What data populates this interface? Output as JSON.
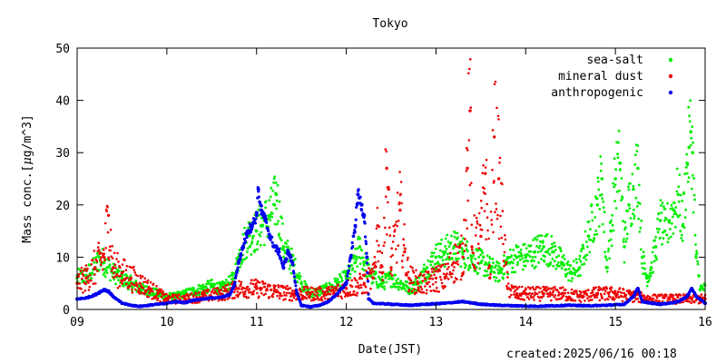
{
  "chart_data": {
    "type": "scatter",
    "title": "Tokyo",
    "xlabel": "Date(JST)",
    "ylabel_parts": [
      "Mass conc.[",
      "μ",
      "g/m",
      "^3",
      "]"
    ],
    "xlim": [
      9,
      16
    ],
    "ylim": [
      0,
      50
    ],
    "x_ticks": [
      "09",
      "10",
      "11",
      "12",
      "13",
      "14",
      "15",
      "16"
    ],
    "y_ticks": [
      0,
      10,
      20,
      30,
      40,
      50
    ],
    "grid": false,
    "legend_position": "top-right",
    "series": [
      {
        "name": "sea-salt",
        "color": "#00ee00",
        "points": [
          [
            9.0,
            6
          ],
          [
            9.1,
            6.5
          ],
          [
            9.2,
            8
          ],
          [
            9.25,
            10
          ],
          [
            9.3,
            9
          ],
          [
            9.4,
            7
          ],
          [
            9.5,
            6
          ],
          [
            9.6,
            5
          ],
          [
            9.7,
            4
          ],
          [
            9.8,
            3.5
          ],
          [
            9.9,
            3
          ],
          [
            10.0,
            2.5
          ],
          [
            10.1,
            2.5
          ],
          [
            10.2,
            3
          ],
          [
            10.3,
            3.5
          ],
          [
            10.4,
            4
          ],
          [
            10.5,
            4.5
          ],
          [
            10.6,
            4
          ],
          [
            10.7,
            5
          ],
          [
            10.75,
            6
          ],
          [
            10.8,
            10
          ],
          [
            10.85,
            12
          ],
          [
            10.9,
            14
          ],
          [
            11.0,
            15
          ],
          [
            11.05,
            16
          ],
          [
            11.1,
            17
          ],
          [
            11.15,
            18
          ],
          [
            11.2,
            20
          ],
          [
            11.22,
            22
          ],
          [
            11.3,
            12
          ],
          [
            11.4,
            9
          ],
          [
            11.5,
            5
          ],
          [
            11.6,
            3
          ],
          [
            11.7,
            3.5
          ],
          [
            11.8,
            4
          ],
          [
            11.9,
            5
          ],
          [
            12.0,
            6
          ],
          [
            12.1,
            9
          ],
          [
            12.15,
            12
          ],
          [
            12.2,
            9
          ],
          [
            12.3,
            6
          ],
          [
            12.4,
            5
          ],
          [
            12.5,
            6
          ],
          [
            12.6,
            5
          ],
          [
            12.7,
            4
          ],
          [
            12.8,
            5
          ],
          [
            12.9,
            8
          ],
          [
            13.0,
            10
          ],
          [
            13.1,
            11
          ],
          [
            13.2,
            12
          ],
          [
            13.3,
            11
          ],
          [
            13.4,
            10
          ],
          [
            13.5,
            9
          ],
          [
            13.6,
            8
          ],
          [
            13.7,
            7
          ],
          [
            13.8,
            9
          ],
          [
            13.9,
            10
          ],
          [
            14.0,
            10
          ],
          [
            14.1,
            11
          ],
          [
            14.2,
            12
          ],
          [
            14.3,
            11
          ],
          [
            14.4,
            9
          ],
          [
            14.5,
            7
          ],
          [
            14.6,
            8
          ],
          [
            14.7,
            14
          ],
          [
            14.8,
            20
          ],
          [
            14.85,
            25
          ],
          [
            14.9,
            8
          ],
          [
            14.95,
            15
          ],
          [
            15.0,
            25
          ],
          [
            15.05,
            28
          ],
          [
            15.1,
            12
          ],
          [
            15.15,
            20
          ],
          [
            15.2,
            23
          ],
          [
            15.25,
            27
          ],
          [
            15.3,
            10
          ],
          [
            15.35,
            6
          ],
          [
            15.4,
            8
          ],
          [
            15.45,
            12
          ],
          [
            15.5,
            17
          ],
          [
            15.55,
            15
          ],
          [
            15.6,
            17
          ],
          [
            15.65,
            19
          ],
          [
            15.7,
            22
          ],
          [
            15.75,
            16
          ],
          [
            15.8,
            28
          ],
          [
            15.82,
            31
          ],
          [
            15.84,
            34
          ],
          [
            15.86,
            30
          ],
          [
            15.9,
            10
          ],
          [
            15.95,
            4
          ]
        ]
      },
      {
        "name": "mineral dust",
        "color": "#ee0000",
        "points": [
          [
            9.0,
            5
          ],
          [
            9.1,
            6
          ],
          [
            9.2,
            8
          ],
          [
            9.3,
            10
          ],
          [
            9.35,
            18
          ],
          [
            9.4,
            8
          ],
          [
            9.5,
            7
          ],
          [
            9.6,
            6
          ],
          [
            9.7,
            5
          ],
          [
            9.8,
            4
          ],
          [
            9.9,
            3
          ],
          [
            10.0,
            2
          ],
          [
            10.2,
            2
          ],
          [
            10.4,
            2.5
          ],
          [
            10.6,
            3
          ],
          [
            10.8,
            4
          ],
          [
            11.0,
            4
          ],
          [
            11.2,
            3.5
          ],
          [
            11.4,
            3
          ],
          [
            11.6,
            3
          ],
          [
            11.8,
            3
          ],
          [
            12.0,
            4
          ],
          [
            12.2,
            5
          ],
          [
            12.3,
            6
          ],
          [
            12.35,
            16
          ],
          [
            12.4,
            7
          ],
          [
            12.45,
            27
          ],
          [
            12.5,
            8
          ],
          [
            12.6,
            19
          ],
          [
            12.65,
            11
          ],
          [
            12.7,
            6
          ],
          [
            12.8,
            5
          ],
          [
            12.9,
            5
          ],
          [
            13.0,
            6
          ],
          [
            13.1,
            6
          ],
          [
            13.2,
            9
          ],
          [
            13.3,
            10
          ],
          [
            13.35,
            27
          ],
          [
            13.38,
            38
          ],
          [
            13.4,
            12
          ],
          [
            13.5,
            14
          ],
          [
            13.55,
            26
          ],
          [
            13.6,
            6
          ],
          [
            13.65,
            33
          ],
          [
            13.7,
            25
          ],
          [
            13.8,
            4
          ],
          [
            13.9,
            3
          ],
          [
            14.0,
            3
          ],
          [
            14.2,
            3
          ],
          [
            14.4,
            3
          ],
          [
            14.6,
            2.5
          ],
          [
            14.8,
            3
          ],
          [
            15.0,
            3
          ],
          [
            15.2,
            2.5
          ],
          [
            15.4,
            2
          ],
          [
            15.6,
            2
          ],
          [
            15.8,
            2
          ],
          [
            16.0,
            2
          ]
        ]
      },
      {
        "name": "anthropogenic",
        "color": "#0000ee",
        "points": [
          [
            9.0,
            2.0
          ],
          [
            9.1,
            2.2
          ],
          [
            9.2,
            2.8
          ],
          [
            9.3,
            3.8
          ],
          [
            9.35,
            3.5
          ],
          [
            9.4,
            2.5
          ],
          [
            9.5,
            1.2
          ],
          [
            9.6,
            0.8
          ],
          [
            9.7,
            0.6
          ],
          [
            9.8,
            0.8
          ],
          [
            9.9,
            1.0
          ],
          [
            10.0,
            1.2
          ],
          [
            10.1,
            1.5
          ],
          [
            10.2,
            1.3
          ],
          [
            10.3,
            1.8
          ],
          [
            10.4,
            2.0
          ],
          [
            10.5,
            2.2
          ],
          [
            10.6,
            2.3
          ],
          [
            10.7,
            2.8
          ],
          [
            10.75,
            4.5
          ],
          [
            10.8,
            9
          ],
          [
            10.85,
            12
          ],
          [
            10.9,
            15
          ],
          [
            10.95,
            16
          ],
          [
            11.0,
            18
          ],
          [
            11.02,
            23
          ],
          [
            11.05,
            19
          ],
          [
            11.1,
            17
          ],
          [
            11.15,
            14
          ],
          [
            11.2,
            12
          ],
          [
            11.25,
            11
          ],
          [
            11.3,
            8
          ],
          [
            11.35,
            11
          ],
          [
            11.4,
            9
          ],
          [
            11.45,
            3
          ],
          [
            11.5,
            0.8
          ],
          [
            11.6,
            0.5
          ],
          [
            11.7,
            0.8
          ],
          [
            11.8,
            1.5
          ],
          [
            11.9,
            3
          ],
          [
            12.0,
            5
          ],
          [
            12.05,
            10
          ],
          [
            12.1,
            16
          ],
          [
            12.13,
            22
          ],
          [
            12.17,
            20
          ],
          [
            12.2,
            18
          ],
          [
            12.23,
            10
          ],
          [
            12.25,
            2
          ],
          [
            12.3,
            1.2
          ],
          [
            12.5,
            1.0
          ],
          [
            12.7,
            0.8
          ],
          [
            12.9,
            1.0
          ],
          [
            13.1,
            1.2
          ],
          [
            13.3,
            1.5
          ],
          [
            13.5,
            1.0
          ],
          [
            13.7,
            0.8
          ],
          [
            13.9,
            0.7
          ],
          [
            14.1,
            0.6
          ],
          [
            14.3,
            0.7
          ],
          [
            14.5,
            0.8
          ],
          [
            14.7,
            0.7
          ],
          [
            14.9,
            0.8
          ],
          [
            15.1,
            1.0
          ],
          [
            15.2,
            2.5
          ],
          [
            15.25,
            4
          ],
          [
            15.3,
            1.5
          ],
          [
            15.4,
            1.2
          ],
          [
            15.5,
            1.0
          ],
          [
            15.6,
            1.2
          ],
          [
            15.7,
            1.5
          ],
          [
            15.8,
            2.5
          ],
          [
            15.85,
            4
          ],
          [
            15.9,
            2.5
          ],
          [
            16.0,
            1.2
          ]
        ]
      }
    ]
  },
  "footer": {
    "created": "created:2025/06/16 00:18"
  }
}
